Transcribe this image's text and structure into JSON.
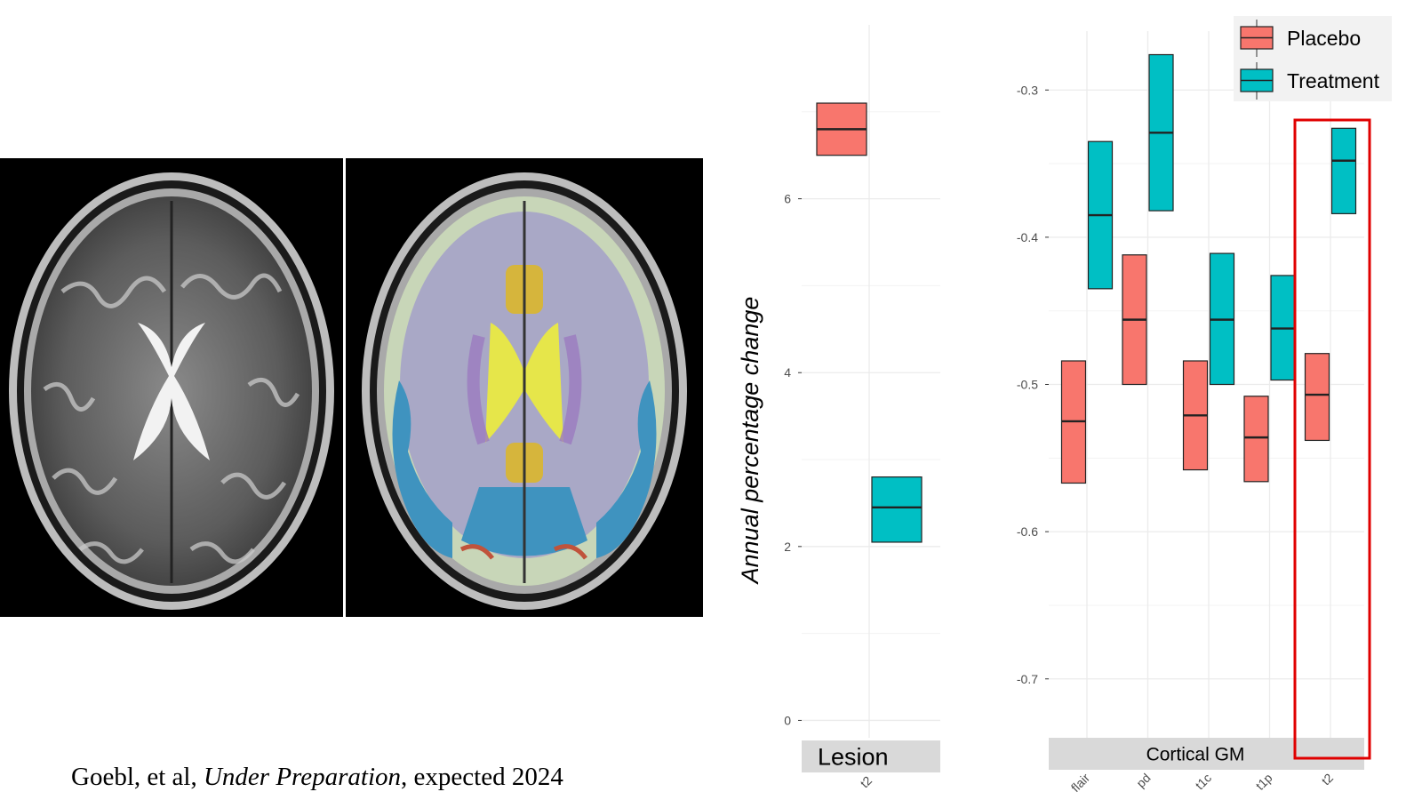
{
  "citation": {
    "author": "Goebl, et al,",
    "venue": "Under Preparation",
    "rest": ", expected 2024"
  },
  "images": [
    {
      "name": "mri-t2-axial-slice"
    },
    {
      "name": "mri-segmentation-overlay"
    }
  ],
  "colors": {
    "placebo": "#F8766D",
    "treatment": "#00BFC4",
    "highlight": "#e00000",
    "strip": "#d9d9d9",
    "grid": "#ebebeb"
  },
  "chart_data": [
    {
      "type": "boxplot",
      "panel": "Lesion",
      "ylabel": "Annual percentage change",
      "ylim": [
        -0.2,
        8.0
      ],
      "yticks": [
        0,
        2,
        4,
        6
      ],
      "ytick_labels": [
        "0",
        "2",
        "4",
        "6"
      ],
      "categories": [
        "t2"
      ],
      "series": [
        {
          "name": "Placebo",
          "color": "#F8766D",
          "boxes": [
            {
              "x": "t2",
              "q1": 6.5,
              "median": 6.8,
              "q3": 7.1
            }
          ]
        },
        {
          "name": "Treatment",
          "color": "#00BFC4",
          "boxes": [
            {
              "x": "t2",
              "q1": 2.05,
              "median": 2.45,
              "q3": 2.8
            }
          ]
        }
      ]
    },
    {
      "type": "boxplot",
      "panel": "Cortical GM",
      "ylim": [
        -0.74,
        -0.26
      ],
      "yticks": [
        -0.3,
        -0.4,
        -0.5,
        -0.6,
        -0.7
      ],
      "ytick_labels": [
        "-0.3",
        "-0.4",
        "-0.5",
        "-0.6",
        "-0.7"
      ],
      "categories": [
        "flair",
        "pd",
        "t1c",
        "t1p",
        "t2"
      ],
      "highlight_category": "t2",
      "legend": {
        "position": "top-right",
        "entries": [
          "Placebo",
          "Treatment"
        ]
      },
      "series": [
        {
          "name": "Placebo",
          "color": "#F8766D",
          "boxes": [
            {
              "x": "flair",
              "q1": -0.567,
              "median": -0.525,
              "q3": -0.484
            },
            {
              "x": "pd",
              "q1": -0.5,
              "median": -0.456,
              "q3": -0.412
            },
            {
              "x": "t1c",
              "q1": -0.558,
              "median": -0.521,
              "q3": -0.484
            },
            {
              "x": "t1p",
              "q1": -0.566,
              "median": -0.536,
              "q3": -0.508
            },
            {
              "x": "t2",
              "q1": -0.538,
              "median": -0.507,
              "q3": -0.479
            }
          ]
        },
        {
          "name": "Treatment",
          "color": "#00BFC4",
          "boxes": [
            {
              "x": "flair",
              "q1": -0.435,
              "median": -0.385,
              "q3": -0.335
            },
            {
              "x": "pd",
              "q1": -0.382,
              "median": -0.329,
              "q3": -0.276
            },
            {
              "x": "t1c",
              "q1": -0.5,
              "median": -0.456,
              "q3": -0.411
            },
            {
              "x": "t1p",
              "q1": -0.497,
              "median": -0.462,
              "q3": -0.426
            },
            {
              "x": "t2",
              "q1": -0.384,
              "median": -0.348,
              "q3": -0.326
            }
          ]
        }
      ]
    }
  ]
}
